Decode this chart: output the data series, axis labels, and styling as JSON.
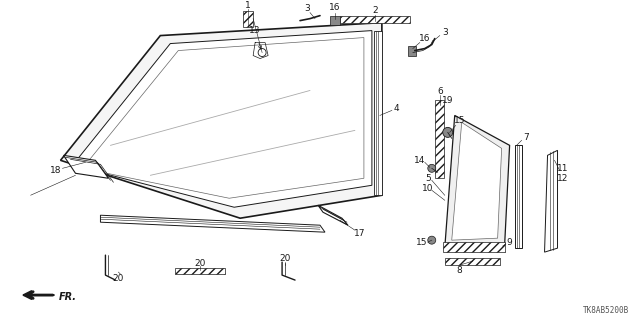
{
  "diagram_code": "TK8AB5200B",
  "background": "#ffffff"
}
